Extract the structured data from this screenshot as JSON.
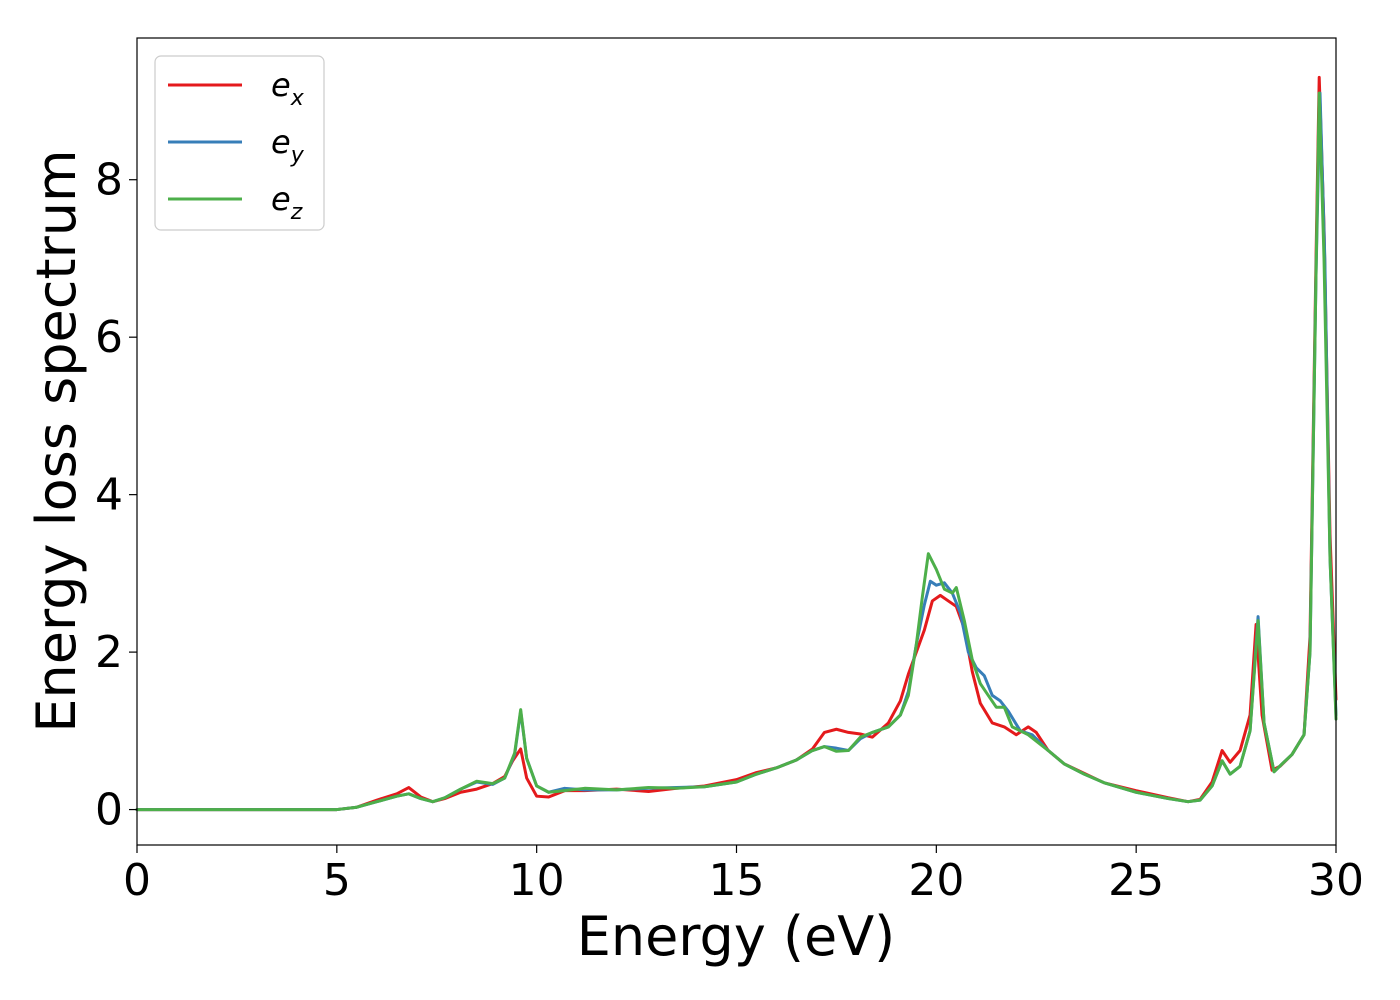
{
  "chart_data": {
    "type": "line",
    "title": "",
    "xlabel": "Energy (eV)",
    "ylabel": "Energy loss spectrum",
    "xlim": [
      0,
      30
    ],
    "ylim": [
      -0.45,
      9.8
    ],
    "xticks": [
      0,
      5,
      10,
      15,
      20,
      25,
      30
    ],
    "xtick_labels": [
      "0",
      "5",
      "10",
      "15",
      "20",
      "25",
      "30"
    ],
    "yticks": [
      0,
      2,
      4,
      6,
      8
    ],
    "ytick_labels": [
      "0",
      "2",
      "4",
      "6",
      "8"
    ],
    "grid": false,
    "legend_position": "top-left",
    "series": [
      {
        "name": "e_x",
        "label_main": "e",
        "label_sub": "x",
        "color": "#e41a1c",
        "points": [
          [
            0,
            0
          ],
          [
            5,
            0.0
          ],
          [
            5.5,
            0.03
          ],
          [
            6.0,
            0.12
          ],
          [
            6.5,
            0.2
          ],
          [
            6.8,
            0.28
          ],
          [
            7.1,
            0.16
          ],
          [
            7.4,
            0.1
          ],
          [
            7.7,
            0.14
          ],
          [
            8.1,
            0.22
          ],
          [
            8.5,
            0.26
          ],
          [
            8.9,
            0.33
          ],
          [
            9.2,
            0.42
          ],
          [
            9.4,
            0.62
          ],
          [
            9.6,
            0.77
          ],
          [
            9.75,
            0.4
          ],
          [
            10.0,
            0.17
          ],
          [
            10.3,
            0.16
          ],
          [
            10.7,
            0.24
          ],
          [
            11.2,
            0.24
          ],
          [
            12.0,
            0.26
          ],
          [
            12.8,
            0.23
          ],
          [
            13.5,
            0.27
          ],
          [
            14.2,
            0.3
          ],
          [
            15.0,
            0.38
          ],
          [
            15.5,
            0.47
          ],
          [
            16.0,
            0.53
          ],
          [
            16.5,
            0.63
          ],
          [
            16.9,
            0.77
          ],
          [
            17.2,
            0.98
          ],
          [
            17.5,
            1.02
          ],
          [
            17.8,
            0.98
          ],
          [
            18.1,
            0.96
          ],
          [
            18.4,
            0.92
          ],
          [
            18.8,
            1.1
          ],
          [
            19.1,
            1.38
          ],
          [
            19.3,
            1.72
          ],
          [
            19.5,
            2.0
          ],
          [
            19.7,
            2.28
          ],
          [
            19.9,
            2.65
          ],
          [
            20.1,
            2.72
          ],
          [
            20.3,
            2.65
          ],
          [
            20.5,
            2.58
          ],
          [
            20.7,
            2.3
          ],
          [
            20.9,
            1.75
          ],
          [
            21.1,
            1.35
          ],
          [
            21.4,
            1.1
          ],
          [
            21.7,
            1.05
          ],
          [
            22.0,
            0.95
          ],
          [
            22.3,
            1.05
          ],
          [
            22.5,
            0.98
          ],
          [
            22.8,
            0.75
          ],
          [
            23.2,
            0.58
          ],
          [
            23.7,
            0.46
          ],
          [
            24.2,
            0.34
          ],
          [
            25.0,
            0.24
          ],
          [
            25.8,
            0.15
          ],
          [
            26.3,
            0.1
          ],
          [
            26.6,
            0.13
          ],
          [
            26.9,
            0.35
          ],
          [
            27.15,
            0.75
          ],
          [
            27.35,
            0.6
          ],
          [
            27.6,
            0.75
          ],
          [
            27.85,
            1.2
          ],
          [
            28.0,
            2.35
          ],
          [
            28.15,
            1.2
          ],
          [
            28.4,
            0.5
          ],
          [
            28.6,
            0.55
          ],
          [
            28.9,
            0.7
          ],
          [
            29.2,
            0.95
          ],
          [
            29.35,
            2.2
          ],
          [
            29.5,
            7.0
          ],
          [
            29.58,
            9.3
          ],
          [
            29.7,
            7.4
          ],
          [
            29.85,
            3.5
          ],
          [
            30.0,
            1.4
          ]
        ]
      },
      {
        "name": "e_y",
        "label_main": "e",
        "label_sub": "y",
        "color": "#377eb8",
        "points": [
          [
            0,
            0
          ],
          [
            5,
            0.0
          ],
          [
            5.5,
            0.03
          ],
          [
            6.0,
            0.1
          ],
          [
            6.5,
            0.17
          ],
          [
            6.8,
            0.2
          ],
          [
            7.1,
            0.14
          ],
          [
            7.4,
            0.1
          ],
          [
            7.7,
            0.15
          ],
          [
            8.1,
            0.26
          ],
          [
            8.5,
            0.35
          ],
          [
            8.9,
            0.32
          ],
          [
            9.2,
            0.4
          ],
          [
            9.45,
            0.7
          ],
          [
            9.6,
            1.25
          ],
          [
            9.75,
            0.65
          ],
          [
            10.0,
            0.3
          ],
          [
            10.3,
            0.22
          ],
          [
            10.7,
            0.27
          ],
          [
            11.2,
            0.25
          ],
          [
            12.0,
            0.25
          ],
          [
            12.8,
            0.27
          ],
          [
            13.5,
            0.28
          ],
          [
            14.2,
            0.29
          ],
          [
            15.0,
            0.35
          ],
          [
            15.5,
            0.45
          ],
          [
            16.0,
            0.53
          ],
          [
            16.5,
            0.63
          ],
          [
            16.9,
            0.75
          ],
          [
            17.2,
            0.8
          ],
          [
            17.5,
            0.78
          ],
          [
            17.8,
            0.75
          ],
          [
            18.1,
            0.9
          ],
          [
            18.4,
            0.98
          ],
          [
            18.8,
            1.05
          ],
          [
            19.1,
            1.2
          ],
          [
            19.3,
            1.5
          ],
          [
            19.5,
            2.1
          ],
          [
            19.7,
            2.6
          ],
          [
            19.85,
            2.9
          ],
          [
            20.0,
            2.85
          ],
          [
            20.2,
            2.88
          ],
          [
            20.4,
            2.75
          ],
          [
            20.6,
            2.5
          ],
          [
            20.8,
            2.0
          ],
          [
            21.0,
            1.8
          ],
          [
            21.2,
            1.7
          ],
          [
            21.4,
            1.45
          ],
          [
            21.6,
            1.38
          ],
          [
            21.8,
            1.25
          ],
          [
            22.1,
            1.0
          ],
          [
            22.4,
            0.95
          ],
          [
            22.8,
            0.75
          ],
          [
            23.2,
            0.58
          ],
          [
            23.7,
            0.45
          ],
          [
            24.2,
            0.34
          ],
          [
            25.0,
            0.22
          ],
          [
            25.8,
            0.14
          ],
          [
            26.3,
            0.1
          ],
          [
            26.6,
            0.12
          ],
          [
            26.9,
            0.3
          ],
          [
            27.15,
            0.62
          ],
          [
            27.35,
            0.45
          ],
          [
            27.6,
            0.55
          ],
          [
            27.85,
            1.0
          ],
          [
            28.05,
            2.45
          ],
          [
            28.2,
            1.1
          ],
          [
            28.45,
            0.48
          ],
          [
            28.65,
            0.58
          ],
          [
            28.9,
            0.7
          ],
          [
            29.2,
            0.95
          ],
          [
            29.35,
            2.0
          ],
          [
            29.5,
            6.8
          ],
          [
            29.6,
            9.1
          ],
          [
            29.72,
            7.0
          ],
          [
            29.85,
            3.2
          ],
          [
            30.0,
            1.2
          ]
        ]
      },
      {
        "name": "e_z",
        "label_main": "e",
        "label_sub": "z",
        "color": "#4daf4a",
        "points": [
          [
            0,
            0
          ],
          [
            5,
            0.0
          ],
          [
            5.5,
            0.03
          ],
          [
            6.0,
            0.1
          ],
          [
            6.5,
            0.17
          ],
          [
            6.8,
            0.2
          ],
          [
            7.1,
            0.14
          ],
          [
            7.4,
            0.1
          ],
          [
            7.7,
            0.15
          ],
          [
            8.1,
            0.26
          ],
          [
            8.5,
            0.36
          ],
          [
            8.9,
            0.33
          ],
          [
            9.2,
            0.4
          ],
          [
            9.45,
            0.72
          ],
          [
            9.6,
            1.27
          ],
          [
            9.75,
            0.65
          ],
          [
            10.0,
            0.3
          ],
          [
            10.3,
            0.22
          ],
          [
            10.7,
            0.24
          ],
          [
            11.2,
            0.27
          ],
          [
            12.0,
            0.25
          ],
          [
            12.8,
            0.28
          ],
          [
            13.5,
            0.27
          ],
          [
            14.2,
            0.29
          ],
          [
            15.0,
            0.35
          ],
          [
            15.5,
            0.45
          ],
          [
            16.0,
            0.53
          ],
          [
            16.5,
            0.63
          ],
          [
            16.9,
            0.75
          ],
          [
            17.2,
            0.8
          ],
          [
            17.5,
            0.74
          ],
          [
            17.8,
            0.75
          ],
          [
            18.1,
            0.92
          ],
          [
            18.4,
            0.98
          ],
          [
            18.8,
            1.05
          ],
          [
            19.1,
            1.2
          ],
          [
            19.3,
            1.45
          ],
          [
            19.5,
            2.1
          ],
          [
            19.65,
            2.7
          ],
          [
            19.8,
            3.25
          ],
          [
            20.0,
            3.05
          ],
          [
            20.2,
            2.8
          ],
          [
            20.4,
            2.75
          ],
          [
            20.5,
            2.82
          ],
          [
            20.7,
            2.4
          ],
          [
            20.9,
            1.9
          ],
          [
            21.1,
            1.6
          ],
          [
            21.3,
            1.45
          ],
          [
            21.5,
            1.3
          ],
          [
            21.7,
            1.3
          ],
          [
            21.9,
            1.05
          ],
          [
            22.3,
            0.95
          ],
          [
            22.8,
            0.75
          ],
          [
            23.2,
            0.58
          ],
          [
            23.7,
            0.45
          ],
          [
            24.2,
            0.34
          ],
          [
            25.0,
            0.22
          ],
          [
            25.8,
            0.14
          ],
          [
            26.3,
            0.1
          ],
          [
            26.6,
            0.12
          ],
          [
            26.9,
            0.3
          ],
          [
            27.15,
            0.62
          ],
          [
            27.35,
            0.45
          ],
          [
            27.6,
            0.55
          ],
          [
            27.85,
            1.0
          ],
          [
            28.05,
            2.4
          ],
          [
            28.2,
            1.1
          ],
          [
            28.45,
            0.48
          ],
          [
            28.65,
            0.58
          ],
          [
            28.9,
            0.7
          ],
          [
            29.2,
            0.95
          ],
          [
            29.35,
            2.0
          ],
          [
            29.5,
            6.8
          ],
          [
            29.58,
            9.1
          ],
          [
            29.7,
            7.0
          ],
          [
            29.85,
            3.2
          ],
          [
            30.0,
            1.15
          ]
        ]
      }
    ]
  }
}
